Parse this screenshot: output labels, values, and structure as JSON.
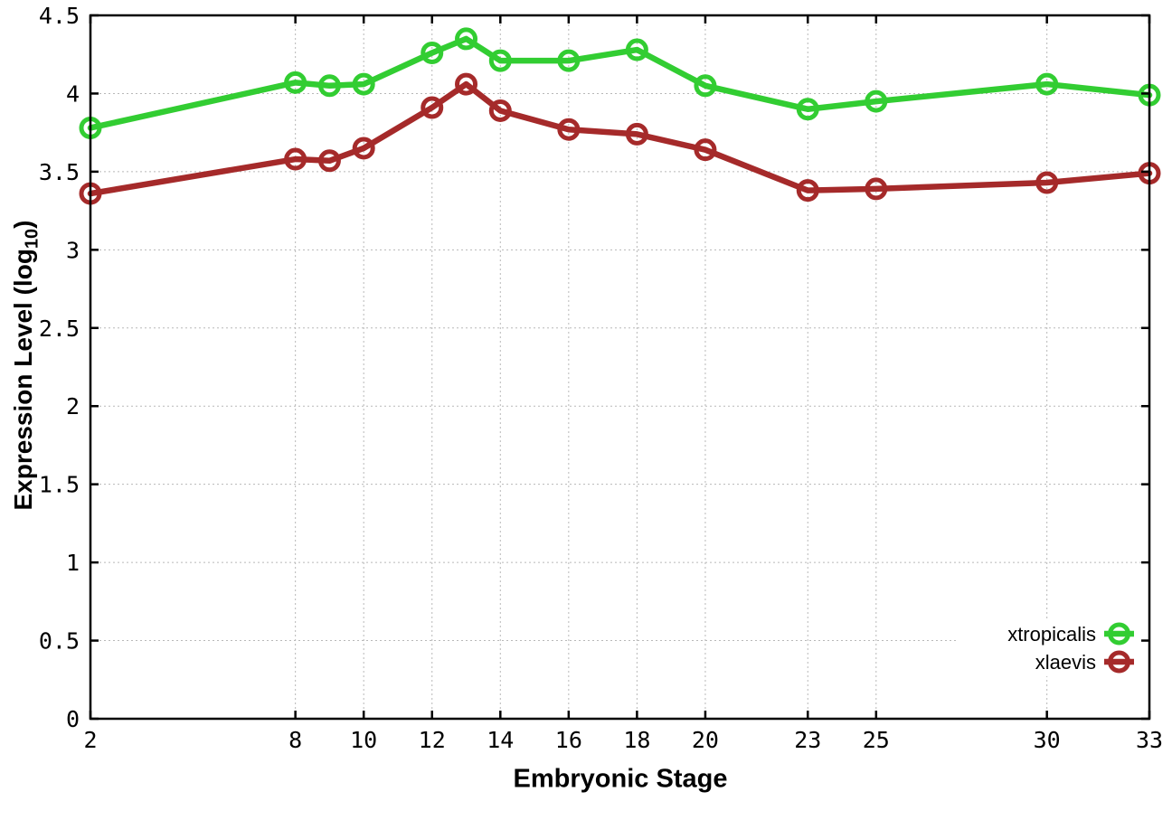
{
  "chart_data": {
    "type": "line",
    "title": "",
    "xlabel": "Embryonic Stage",
    "ylabel": "Expression Level (log10)",
    "ylabel_parts": {
      "pre": "Expression Level (log",
      "sub": "10",
      "post": ")"
    },
    "x": [
      2,
      8,
      9,
      10,
      12,
      13,
      14,
      16,
      18,
      20,
      23,
      25,
      30,
      33
    ],
    "x_ticks": [
      2,
      8,
      10,
      12,
      14,
      16,
      18,
      20,
      23,
      25,
      30,
      33
    ],
    "y_ticks": [
      0,
      0.5,
      1,
      1.5,
      2,
      2.5,
      3,
      3.5,
      4,
      4.5
    ],
    "xlim": [
      2,
      33
    ],
    "ylim": [
      0,
      4.5
    ],
    "grid": true,
    "legend_position": "bottom-right",
    "series": [
      {
        "name": "xtropicalis",
        "color": "#32cd32",
        "values": [
          3.78,
          4.07,
          4.05,
          4.06,
          4.26,
          4.35,
          4.21,
          4.21,
          4.28,
          4.05,
          3.9,
          3.95,
          4.06,
          3.99
        ]
      },
      {
        "name": "xlaevis",
        "color": "#a52a2a",
        "values": [
          3.36,
          3.58,
          3.57,
          3.65,
          3.91,
          4.06,
          3.89,
          3.77,
          3.74,
          3.64,
          3.38,
          3.39,
          3.43,
          3.49
        ]
      }
    ]
  }
}
